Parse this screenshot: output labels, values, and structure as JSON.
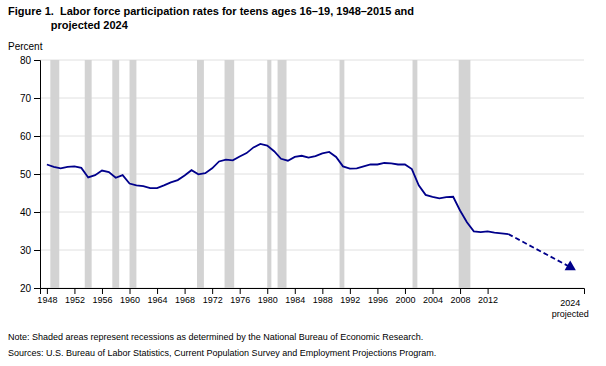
{
  "chart_data": {
    "type": "line",
    "title": "Figure 1.  Labor force participation rates for teens ages 16–19, 1948–2015 and\n              projected 2024",
    "ylabel": "Percent",
    "note": "Note: Shaded areas represent recessions as determined by the National Bureau of Economic Research.",
    "source": "Sources: U.S. Bureau of Labor Statistics, Current Population Survey and Employment Projections Program.",
    "xlim": [
      1947,
      2026
    ],
    "ylim": [
      20,
      80
    ],
    "xticks": [
      1948,
      1952,
      1956,
      1960,
      1964,
      1968,
      1972,
      1976,
      1980,
      1984,
      1988,
      1992,
      1996,
      2000,
      2004,
      2008,
      2012
    ],
    "yticks": [
      20,
      30,
      40,
      50,
      60,
      70,
      80
    ],
    "grid": true,
    "bands": {
      "color": "#d3d3d3",
      "ranges": [
        [
          1948.5,
          1949.8
        ],
        [
          1953.5,
          1954.5
        ],
        [
          1957.5,
          1958.5
        ],
        [
          1960.0,
          1961.0
        ],
        [
          1969.8,
          1970.8
        ],
        [
          1973.8,
          1975.2
        ],
        [
          1980.0,
          1980.6
        ],
        [
          1981.5,
          1982.8
        ],
        [
          1990.5,
          1991.2
        ],
        [
          2001.1,
          2001.8
        ],
        [
          2007.8,
          2009.5
        ]
      ]
    },
    "annotations": [
      {
        "text": "2024",
        "x": 2024
      },
      {
        "text": "projected",
        "x": 2024
      }
    ],
    "x": [
      1948,
      1949,
      1950,
      1951,
      1952,
      1953,
      1954,
      1955,
      1956,
      1957,
      1958,
      1959,
      1960,
      1961,
      1962,
      1963,
      1964,
      1965,
      1966,
      1967,
      1968,
      1969,
      1970,
      1971,
      1972,
      1973,
      1974,
      1975,
      1976,
      1977,
      1978,
      1979,
      1980,
      1981,
      1982,
      1983,
      1984,
      1985,
      1986,
      1987,
      1988,
      1989,
      1990,
      1991,
      1992,
      1993,
      1994,
      1995,
      1996,
      1997,
      1998,
      1999,
      2000,
      2001,
      2002,
      2003,
      2004,
      2005,
      2006,
      2007,
      2008,
      2009,
      2010,
      2011,
      2012,
      2013,
      2014,
      2015,
      2024
    ],
    "series": [
      {
        "color": "#00008B",
        "line_style": "solid",
        "values": [
          52.5,
          51.9,
          51.5,
          51.9,
          52.0,
          51.6,
          49.1,
          49.7,
          50.9,
          50.5,
          49.0,
          49.7,
          47.5,
          47.0,
          46.8,
          46.3,
          46.3,
          47.0,
          47.8,
          48.4,
          49.6,
          51.0,
          49.9,
          50.2,
          51.5,
          53.3,
          53.8,
          53.6,
          54.6,
          55.5,
          57.0,
          57.9,
          57.5,
          56.0,
          54.0,
          53.5,
          54.5,
          54.8,
          54.3,
          54.7,
          55.4,
          55.8,
          54.5,
          52.0,
          51.4,
          51.5,
          52.0,
          52.5,
          52.5,
          52.9,
          52.8,
          52.5,
          52.5,
          51.3,
          47.0,
          44.5,
          44.0,
          43.6,
          43.9,
          44.0,
          40.4,
          37.3,
          34.9,
          34.7,
          34.9,
          34.6,
          34.4,
          34.2,
          null
        ]
      },
      {
        "color": "#00008B",
        "line_style": "dashed",
        "marker": "triangle",
        "values": [
          null,
          null,
          null,
          null,
          null,
          null,
          null,
          null,
          null,
          null,
          null,
          null,
          null,
          null,
          null,
          null,
          null,
          null,
          null,
          null,
          null,
          null,
          null,
          null,
          null,
          null,
          null,
          null,
          null,
          null,
          null,
          null,
          null,
          null,
          null,
          null,
          null,
          null,
          null,
          null,
          null,
          null,
          null,
          null,
          null,
          null,
          null,
          null,
          null,
          null,
          null,
          null,
          null,
          null,
          null,
          null,
          null,
          null,
          null,
          null,
          null,
          null,
          null,
          null,
          null,
          null,
          null,
          34.2,
          25.5
        ]
      }
    ]
  }
}
